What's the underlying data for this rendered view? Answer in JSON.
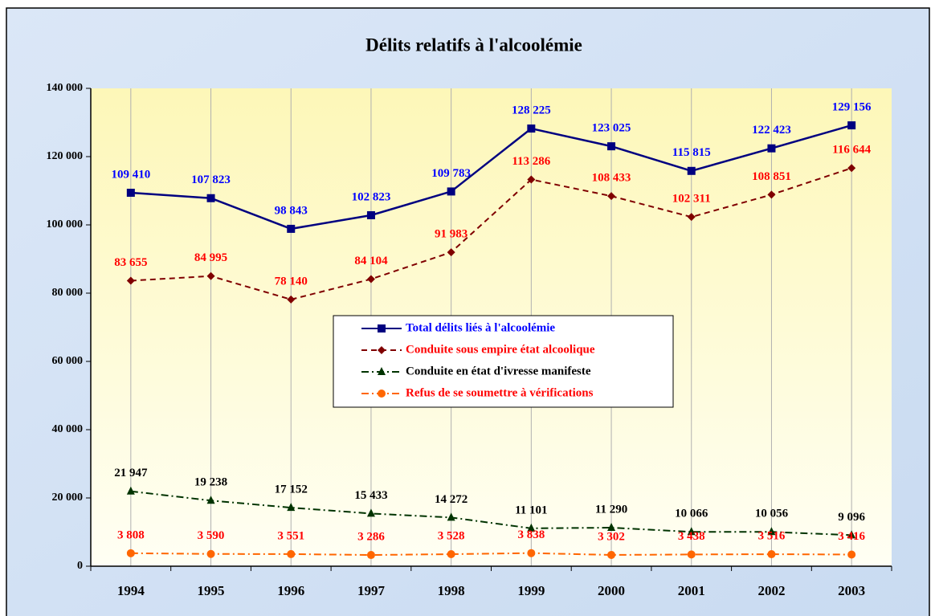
{
  "chart_data": {
    "type": "line",
    "title": "Délits relatifs à l'alcoolémie",
    "categories": [
      "1994",
      "1995",
      "1996",
      "1997",
      "1998",
      "1999",
      "2000",
      "2001",
      "2002",
      "2003"
    ],
    "series": [
      {
        "name": "Total délits liés à l'alcoolémie",
        "color": "#000080",
        "label_color": "#0000ff",
        "dash": "solid",
        "marker": "square",
        "values": [
          109410,
          107823,
          98843,
          102823,
          109783,
          128225,
          123025,
          115815,
          122423,
          129156
        ],
        "value_labels": [
          "109 410",
          "107 823",
          "98 843",
          "102 823",
          "109 783",
          "128 225",
          "123 025",
          "115 815",
          "122 423",
          "129 156"
        ]
      },
      {
        "name": "Conduite sous empire état alcoolique",
        "color": "#800000",
        "label_color": "#ff0000",
        "dash": "dashed",
        "marker": "diamond",
        "values": [
          83655,
          84995,
          78140,
          84104,
          91983,
          113286,
          108433,
          102311,
          108851,
          116644
        ],
        "value_labels": [
          "83 655",
          "84 995",
          "78 140",
          "84 104",
          "91 983",
          "113 286",
          "108 433",
          "102 311",
          "108 851",
          "116 644"
        ]
      },
      {
        "name": "Conduite en état d'ivresse manifeste",
        "color": "#003300",
        "label_color": "#000000",
        "dash": "dashdot",
        "marker": "triangle",
        "values": [
          21947,
          19238,
          17152,
          15433,
          14272,
          11101,
          11290,
          10066,
          10056,
          9096
        ],
        "value_labels": [
          "21 947",
          "19 238",
          "17 152",
          "15 433",
          "14 272",
          "11 101",
          "11 290",
          "10 066",
          "10 056",
          "9 096"
        ]
      },
      {
        "name": "Refus de se soumettre à vérifications",
        "color": "#ff6600",
        "label_color": "#ff0000",
        "dash": "dashdot",
        "marker": "circle",
        "values": [
          3808,
          3590,
          3551,
          3286,
          3528,
          3838,
          3302,
          3438,
          3516,
          3416
        ],
        "value_labels": [
          "3 808",
          "3 590",
          "3 551",
          "3 286",
          "3 528",
          "3 838",
          "3 302",
          "3 438",
          "3 516",
          "3 416"
        ]
      }
    ],
    "ylim": [
      0,
      140000
    ],
    "yticks": [
      0,
      {
        "value": 20000,
        "label": "20 000"
      },
      {
        "value": 40000,
        "label": "40 000"
      },
      {
        "value": 60000,
        "label": "60 000"
      },
      {
        "value": 80000,
        "label": "80 000"
      },
      {
        "value": 100000,
        "label": "100 000"
      },
      {
        "value": 120000,
        "label": "120 000"
      },
      {
        "value": 140000,
        "label": "140 000"
      }
    ],
    "grid": "vertical",
    "legend": "center"
  }
}
